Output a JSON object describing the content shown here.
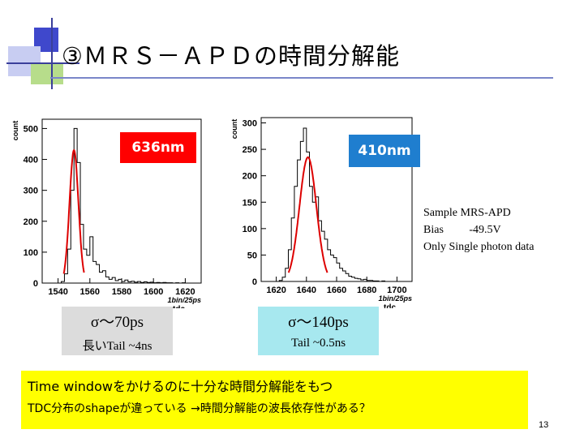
{
  "slide": {
    "title": "③ＭＲＳ－ＡＰＤの時間分解能",
    "page_number": "13",
    "colors": {
      "tag_red": "#ff0000",
      "tag_blue": "#1f7ecf",
      "fit_line": "#dd0000",
      "note_bg": "#ffff00",
      "box_left_bg": "#dcdcdc",
      "box_right_bg": "#a7e8ef"
    }
  },
  "tags": {
    "left": "636nm",
    "right": "410nm"
  },
  "info": {
    "line1": "Sample MRS-APD",
    "line2": "Bias         -49.5V",
    "line3": "Only Single photon data"
  },
  "boxes": {
    "left": {
      "sigma": "σ～70ps",
      "tail": "長いTail  ~4ns"
    },
    "right": {
      "sigma": "σ～140ps",
      "tail": "Tail ~0.5ns"
    }
  },
  "note": {
    "line1": "Time  windowをかけるのに十分な時間分解能をもつ",
    "line2": "TDC分布のshapeが違っている  →時間分解能の波長依存性がある？"
  },
  "chart_data": [
    {
      "type": "histogram",
      "ylabel": "count",
      "xlabel": "tdc",
      "xunit_label": "1bin/25ps",
      "xlim": [
        1530,
        1630
      ],
      "ylim": [
        0,
        530
      ],
      "xticks": [
        1540,
        1560,
        1580,
        1600,
        1620
      ],
      "yticks": [
        0,
        100,
        200,
        300,
        400,
        500
      ],
      "x": [
        1540,
        1542,
        1544,
        1546,
        1548,
        1550,
        1552,
        1554,
        1556,
        1558,
        1560,
        1562,
        1564,
        1566,
        1568,
        1570,
        1572,
        1574,
        1576,
        1578,
        1580,
        1582,
        1584,
        1586,
        1588,
        1590,
        1592,
        1594,
        1596,
        1598,
        1600,
        1602,
        1604,
        1606,
        1608,
        1610,
        1612,
        1614,
        1616,
        1618,
        1620
      ],
      "counts": [
        0,
        5,
        30,
        110,
        300,
        500,
        390,
        190,
        110,
        90,
        150,
        70,
        60,
        35,
        40,
        20,
        12,
        18,
        8,
        12,
        5,
        10,
        4,
        6,
        3,
        5,
        2,
        4,
        2,
        3,
        1,
        2,
        1,
        2,
        1,
        1,
        0,
        1,
        0,
        1,
        0
      ],
      "fit": {
        "name": "gaussian",
        "mean": 1550,
        "sigma_bins": 2.8,
        "peak": 430
      }
    },
    {
      "type": "histogram",
      "ylabel": "count",
      "xlabel": "tdc",
      "xunit_label": "1bin/25ps",
      "xlim": [
        1610,
        1710
      ],
      "ylim": [
        0,
        310
      ],
      "xticks": [
        1620,
        1640,
        1660,
        1680,
        1700
      ],
      "yticks": [
        0,
        50,
        100,
        150,
        200,
        250,
        300
      ],
      "x": [
        1620,
        1622,
        1624,
        1626,
        1628,
        1630,
        1632,
        1634,
        1636,
        1638,
        1640,
        1642,
        1644,
        1646,
        1648,
        1650,
        1652,
        1654,
        1656,
        1658,
        1660,
        1662,
        1664,
        1666,
        1668,
        1670,
        1672,
        1674,
        1676,
        1678,
        1680,
        1682,
        1684,
        1686,
        1688,
        1690,
        1692,
        1694,
        1696,
        1698,
        1700
      ],
      "counts": [
        0,
        2,
        8,
        25,
        60,
        120,
        180,
        230,
        265,
        290,
        245,
        180,
        150,
        160,
        115,
        95,
        80,
        60,
        50,
        45,
        35,
        25,
        20,
        15,
        10,
        8,
        6,
        5,
        3,
        4,
        2,
        2,
        1,
        1,
        0,
        1,
        0,
        0,
        0,
        0,
        0
      ],
      "fit": {
        "name": "gaussian",
        "mean": 1641,
        "sigma_bins": 5.6,
        "peak": 235
      }
    }
  ]
}
